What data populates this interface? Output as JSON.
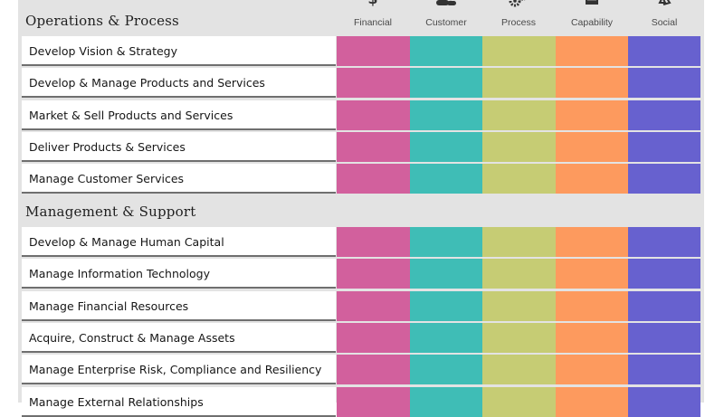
{
  "columns": [
    {
      "label": "Financial",
      "color": "#d2609d",
      "icon": "dollar-icon"
    },
    {
      "label": "Customer",
      "color": "#3fbdb6",
      "icon": "people-icon"
    },
    {
      "label": "Process",
      "color": "#c6cc74",
      "icon": "gears-icon"
    },
    {
      "label": "Capability",
      "color": "#fd9a5e",
      "icon": "book-icon"
    },
    {
      "label": "Social",
      "color": "#6761cf",
      "icon": "recycle-icon"
    }
  ],
  "sections": [
    {
      "title": "Operations & Process",
      "rows": [
        "Develop Vision & Strategy",
        "Develop & Manage Products and Services",
        "Market & Sell Products and Services",
        "Deliver Products & Services",
        "Manage Customer Services"
      ]
    },
    {
      "title": "Management & Support",
      "rows": [
        "Develop & Manage Human Capital",
        "Manage Information Technology",
        "Manage Financial Resources",
        "Acquire, Construct & Manage Assets",
        "Manage Enterprise Risk, Compliance and Resiliency",
        "Manage External Relationships"
      ]
    }
  ]
}
